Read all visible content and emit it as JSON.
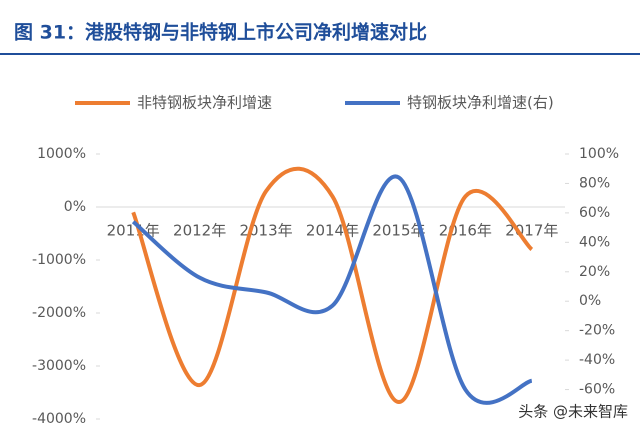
{
  "chart_data": {
    "type": "line",
    "title": "图 31：港股特钢与非特钢上市公司净利增速对比",
    "categories": [
      "2011年",
      "2012年",
      "2013年",
      "2014年",
      "2015年",
      "2016年",
      "2017年"
    ],
    "series": [
      {
        "name": "非特钢板块净利增速",
        "color": "#ed7d31",
        "values": [
          -100,
          -3360,
          300,
          200,
          -3680,
          200,
          -800
        ]
      },
      {
        "name": "特钢板块净利增速(右)",
        "color": "#4472c4",
        "axis": "y2",
        "values": [
          54,
          16,
          6,
          -3,
          84,
          -60,
          -54
        ]
      }
    ],
    "ylim": [
      -4000,
      1000
    ],
    "yticks": [
      {
        "value": 1000,
        "label": "1000%"
      },
      {
        "value": 0,
        "label": "0%"
      },
      {
        "value": -1000,
        "label": "-1000%"
      },
      {
        "value": -2000,
        "label": "-2000%"
      },
      {
        "value": -3000,
        "label": "-3000%"
      },
      {
        "value": -4000,
        "label": "-4000%"
      }
    ],
    "y2lim": [
      -80,
      100
    ],
    "y2ticks": [
      {
        "value": 100,
        "label": "100%"
      },
      {
        "value": 80,
        "label": "80%"
      },
      {
        "value": 60,
        "label": "60%"
      },
      {
        "value": 40,
        "label": "40%"
      },
      {
        "value": 20,
        "label": "20%"
      },
      {
        "value": 0,
        "label": "0%"
      },
      {
        "value": -20,
        "label": "-20%"
      },
      {
        "value": -40,
        "label": "-40%"
      },
      {
        "value": -60,
        "label": "-60%"
      }
    ],
    "watermark": "头条 @未来智库"
  }
}
